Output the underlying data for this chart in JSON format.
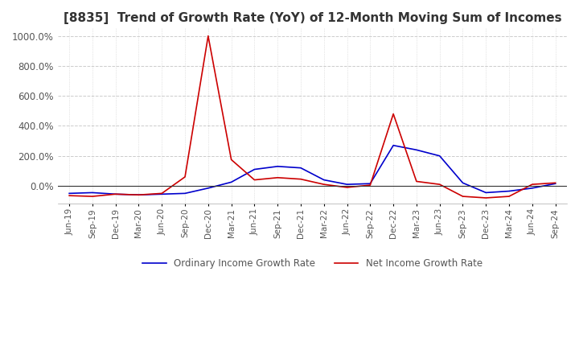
{
  "title": "[8835]  Trend of Growth Rate (YoY) of 12-Month Moving Sum of Incomes",
  "title_fontsize": 11,
  "ylim": [
    -120,
    1050
  ],
  "yticks": [
    0,
    200,
    400,
    600,
    800,
    1000
  ],
  "ytick_labels": [
    "0.0%",
    "200.0%",
    "400.0%",
    "600.0%",
    "800.0%",
    "1000.0%"
  ],
  "background_color": "#ffffff",
  "plot_bg_color": "#ffffff",
  "grid_color": "#cccccc",
  "legend_labels": [
    "Ordinary Income Growth Rate",
    "Net Income Growth Rate"
  ],
  "dates": [
    "Jun-19",
    "Sep-19",
    "Dec-19",
    "Mar-20",
    "Jun-20",
    "Sep-20",
    "Dec-20",
    "Mar-21",
    "Jun-21",
    "Sep-21",
    "Dec-21",
    "Mar-22",
    "Jun-22",
    "Sep-22",
    "Dec-22",
    "Mar-23",
    "Jun-23",
    "Sep-23",
    "Dec-23",
    "Mar-24",
    "Jun-24",
    "Sep-24"
  ],
  "ordinary_income": [
    -50,
    -45,
    -55,
    -60,
    -55,
    -50,
    -15,
    25,
    110,
    130,
    120,
    40,
    10,
    15,
    270,
    240,
    200,
    20,
    -45,
    -35,
    -15,
    15
  ],
  "net_income": [
    -65,
    -70,
    -55,
    -60,
    -50,
    60,
    1000,
    175,
    40,
    55,
    45,
    10,
    -10,
    5,
    480,
    30,
    10,
    -70,
    -80,
    -70,
    10,
    20
  ],
  "ordinary_color": "#0000cc",
  "net_color": "#cc0000",
  "linewidth": 1.2
}
